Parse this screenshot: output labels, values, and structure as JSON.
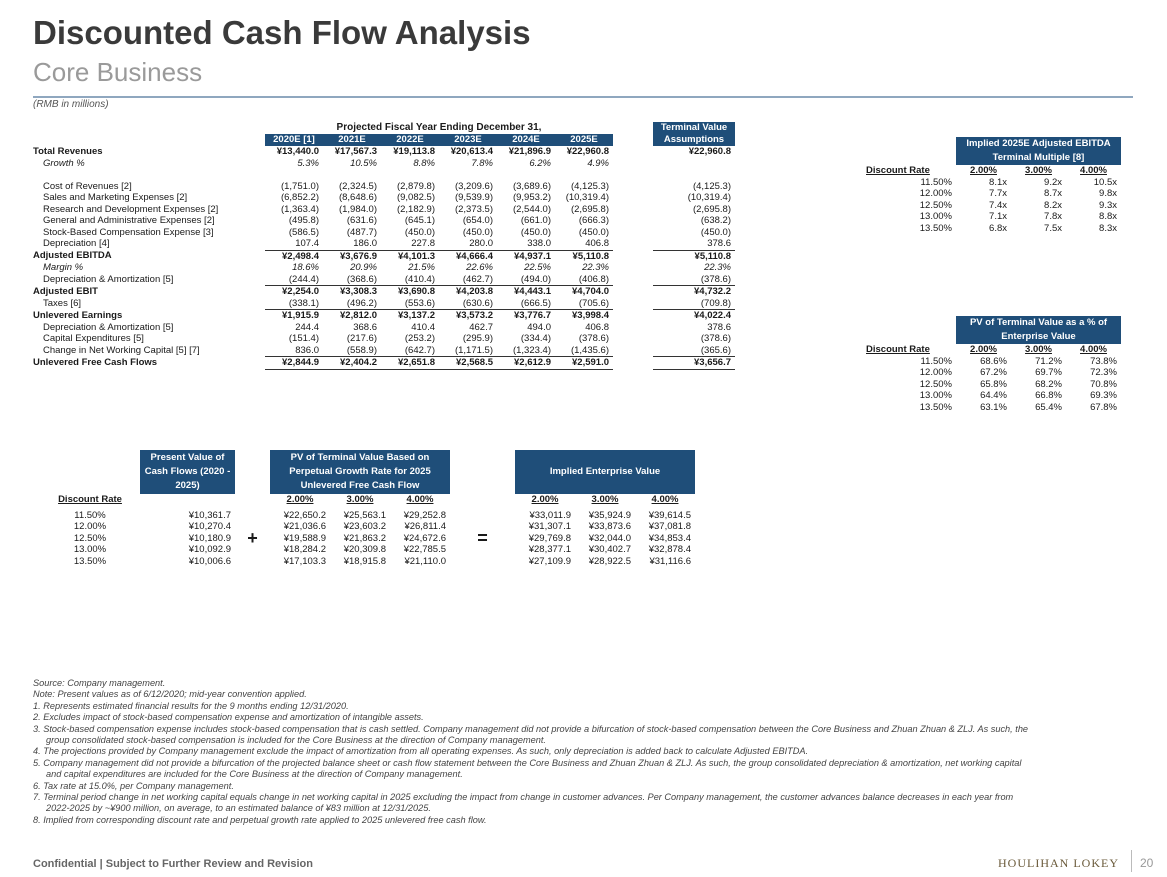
{
  "title": "Discounted Cash Flow Analysis",
  "subtitle": "Core Business",
  "units": "(RMB in millions)",
  "projection": {
    "header": "Projected Fiscal Year Ending December 31,",
    "years": [
      "2020E [1]",
      "2021E",
      "2022E",
      "2023E",
      "2024E",
      "2025E"
    ],
    "tv_header": "Terminal Value Assumptions",
    "rows": [
      {
        "label": "Total Revenues",
        "style": "bold",
        "values": [
          "¥13,440.0",
          "¥17,567.3",
          "¥19,113.8",
          "¥20,613.4",
          "¥21,896.9",
          "¥22,960.8"
        ],
        "tv": "¥22,960.8"
      },
      {
        "label": "Growth %",
        "style": "italic-indent",
        "values": [
          "5.3%",
          "10.5%",
          "8.8%",
          "7.8%",
          "6.2%",
          "4.9%"
        ],
        "tv": ""
      },
      {
        "label": "",
        "style": "spacer",
        "values": [
          "",
          "",
          "",
          "",
          "",
          ""
        ],
        "tv": ""
      },
      {
        "label": "Cost of Revenues [2]",
        "style": "indent",
        "values": [
          "(1,751.0)",
          "(2,324.5)",
          "(2,879.8)",
          "(3,209.6)",
          "(3,689.6)",
          "(4,125.3)"
        ],
        "tv": "(4,125.3)"
      },
      {
        "label": "Sales and Marketing Expenses [2]",
        "style": "indent",
        "values": [
          "(6,852.2)",
          "(8,648.6)",
          "(9,082.5)",
          "(9,539.9)",
          "(9,953.2)",
          "(10,319.4)"
        ],
        "tv": "(10,319.4)"
      },
      {
        "label": "Research and Development Expenses [2]",
        "style": "indent",
        "values": [
          "(1,363.4)",
          "(1,984.0)",
          "(2,182.9)",
          "(2,373.5)",
          "(2,544.0)",
          "(2,695.8)"
        ],
        "tv": "(2,695.8)"
      },
      {
        "label": "General and Administrative Expenses [2]",
        "style": "indent",
        "values": [
          "(495.8)",
          "(631.6)",
          "(645.1)",
          "(654.0)",
          "(661.0)",
          "(666.3)"
        ],
        "tv": "(638.2)"
      },
      {
        "label": "Stock-Based Compensation Expense [3]",
        "style": "indent",
        "values": [
          "(586.5)",
          "(487.7)",
          "(450.0)",
          "(450.0)",
          "(450.0)",
          "(450.0)"
        ],
        "tv": "(450.0)"
      },
      {
        "label": "Depreciation [4]",
        "style": "indent",
        "values": [
          "107.4",
          "186.0",
          "227.8",
          "280.0",
          "338.0",
          "406.8"
        ],
        "tv": "378.6"
      },
      {
        "label": "Adjusted EBITDA",
        "style": "bold-top",
        "values": [
          "¥2,498.4",
          "¥3,676.9",
          "¥4,101.3",
          "¥4,666.4",
          "¥4,937.1",
          "¥5,110.8"
        ],
        "tv": "¥5,110.8"
      },
      {
        "label": "Margin %",
        "style": "italic-indent",
        "values": [
          "18.6%",
          "20.9%",
          "21.5%",
          "22.6%",
          "22.5%",
          "22.3%"
        ],
        "tv": "22.3%"
      },
      {
        "label": "Depreciation & Amortization [5]",
        "style": "indent",
        "values": [
          "(244.4)",
          "(368.6)",
          "(410.4)",
          "(462.7)",
          "(494.0)",
          "(406.8)"
        ],
        "tv": "(378.6)"
      },
      {
        "label": "Adjusted EBIT",
        "style": "bold-top",
        "values": [
          "¥2,254.0",
          "¥3,308.3",
          "¥3,690.8",
          "¥4,203.8",
          "¥4,443.1",
          "¥4,704.0"
        ],
        "tv": "¥4,732.2"
      },
      {
        "label": "Taxes [6]",
        "style": "indent",
        "values": [
          "(338.1)",
          "(496.2)",
          "(553.6)",
          "(630.6)",
          "(666.5)",
          "(705.6)"
        ],
        "tv": "(709.8)"
      },
      {
        "label": "Unlevered Earnings",
        "style": "bold-top",
        "values": [
          "¥1,915.9",
          "¥2,812.0",
          "¥3,137.2",
          "¥3,573.2",
          "¥3,776.7",
          "¥3,998.4"
        ],
        "tv": "¥4,022.4"
      },
      {
        "label": "Depreciation & Amortization [5]",
        "style": "indent",
        "values": [
          "244.4",
          "368.6",
          "410.4",
          "462.7",
          "494.0",
          "406.8"
        ],
        "tv": "378.6"
      },
      {
        "label": "Capital Expenditures [5]",
        "style": "indent",
        "values": [
          "(151.4)",
          "(217.6)",
          "(253.2)",
          "(295.9)",
          "(334.4)",
          "(378.6)"
        ],
        "tv": "(378.6)"
      },
      {
        "label": "Change in Net Working Capital [5] [7]",
        "style": "indent",
        "values": [
          "836.0",
          "(558.9)",
          "(642.7)",
          "(1,171.5)",
          "(1,323.4)",
          "(1,435.6)"
        ],
        "tv": "(365.6)"
      },
      {
        "label": "Unlevered Free Cash Flows",
        "style": "bold-top",
        "values": [
          "¥2,844.9",
          "¥2,404.2",
          "¥2,651.8",
          "¥2,568.5",
          "¥2,612.9",
          "¥2,591.0"
        ],
        "tv": "¥3,656.7"
      }
    ]
  },
  "multiple_table": {
    "header": "Implied 2025E Adjusted EBITDA Terminal Multiple [8]",
    "rate_label": "Discount Rate",
    "cols": [
      "2.00%",
      "3.00%",
      "4.00%"
    ],
    "rows": [
      {
        "rate": "11.50%",
        "values": [
          "8.1x",
          "9.2x",
          "10.5x"
        ]
      },
      {
        "rate": "12.00%",
        "values": [
          "7.7x",
          "8.7x",
          "9.8x"
        ]
      },
      {
        "rate": "12.50%",
        "values": [
          "7.4x",
          "8.2x",
          "9.3x"
        ]
      },
      {
        "rate": "13.00%",
        "values": [
          "7.1x",
          "7.8x",
          "8.8x"
        ]
      },
      {
        "rate": "13.50%",
        "values": [
          "6.8x",
          "7.5x",
          "8.3x"
        ]
      }
    ]
  },
  "pv_tv_table": {
    "header": "PV of Terminal Value as a % of Enterprise Value",
    "rate_label": "Discount Rate",
    "cols": [
      "2.00%",
      "3.00%",
      "4.00%"
    ],
    "rows": [
      {
        "rate": "11.50%",
        "values": [
          "68.6%",
          "71.2%",
          "73.8%"
        ]
      },
      {
        "rate": "12.00%",
        "values": [
          "67.2%",
          "69.7%",
          "72.3%"
        ]
      },
      {
        "rate": "12.50%",
        "values": [
          "65.8%",
          "68.2%",
          "70.8%"
        ]
      },
      {
        "rate": "13.00%",
        "values": [
          "64.4%",
          "66.8%",
          "69.3%"
        ]
      },
      {
        "rate": "13.50%",
        "values": [
          "63.1%",
          "65.4%",
          "67.8%"
        ]
      }
    ]
  },
  "ev_section": {
    "rate_label": "Discount Rate",
    "pv_cf_header": "Present Value of Cash Flows (2020 - 2025)",
    "pv_tv_header": "PV of Terminal Value Based on Perpetual Growth Rate for 2025 Unlevered Free Cash Flow",
    "ev_header": "Implied Enterprise Value",
    "plus": "+",
    "equals": "=",
    "cols": [
      "2.00%",
      "3.00%",
      "4.00%"
    ],
    "rows": [
      {
        "rate": "11.50%",
        "pv_cf": "¥10,361.7",
        "pv_tv": [
          "¥22,650.2",
          "¥25,563.1",
          "¥29,252.8"
        ],
        "ev": [
          "¥33,011.9",
          "¥35,924.9",
          "¥39,614.5"
        ]
      },
      {
        "rate": "12.00%",
        "pv_cf": "¥10,270.4",
        "pv_tv": [
          "¥21,036.6",
          "¥23,603.2",
          "¥26,811.4"
        ],
        "ev": [
          "¥31,307.1",
          "¥33,873.6",
          "¥37,081.8"
        ]
      },
      {
        "rate": "12.50%",
        "pv_cf": "¥10,180.9",
        "pv_tv": [
          "¥19,588.9",
          "¥21,863.2",
          "¥24,672.6"
        ],
        "ev": [
          "¥29,769.8",
          "¥32,044.0",
          "¥34,853.4"
        ]
      },
      {
        "rate": "13.00%",
        "pv_cf": "¥10,092.9",
        "pv_tv": [
          "¥18,284.2",
          "¥20,309.8",
          "¥22,785.5"
        ],
        "ev": [
          "¥28,377.1",
          "¥30,402.7",
          "¥32,878.4"
        ]
      },
      {
        "rate": "13.50%",
        "pv_cf": "¥10,006.6",
        "pv_tv": [
          "¥17,103.3",
          "¥18,915.8",
          "¥21,110.0"
        ],
        "ev": [
          "¥27,109.9",
          "¥28,922.5",
          "¥31,116.6"
        ]
      }
    ]
  },
  "footnotes": {
    "source": "Source: Company management.",
    "note": "Note: Present values as of 6/12/2020; mid-year convention applied.",
    "items": [
      "1.  Represents estimated financial results for the 9 months ending 12/31/2020.",
      "2.  Excludes impact of stock-based compensation expense and amortization of intangible assets.",
      "3.  Stock-based compensation expense includes stock-based compensation that is cash settled. Company management did not provide a bifurcation of stock-based compensation between the Core Business and Zhuan Zhuan & ZLJ. As such, the group consolidated stock-based compensation is included for the Core Business at the direction of Company management.",
      "4.  The projections provided by Company management exclude the impact of amortization from all operating expenses. As such, only depreciation is added back to calculate Adjusted EBITDA.",
      "5.  Company management did not provide a bifurcation of the projected balance sheet or cash flow statement between the Core Business and Zhuan Zhuan & ZLJ. As such, the group consolidated depreciation & amortization, net working capital and capital expenditures are included for the Core Business at the direction of Company management.",
      "6.  Tax rate at 15.0%, per Company management.",
      "7.  Terminal period change in net working capital equals change in net working capital in 2025 excluding the impact from change in customer advances. Per Company management, the customer advances balance decreases in each year from 2022-2025 by ~¥900 million, on average, to an estimated balance of ¥83 million at 12/31/2025.",
      "8.  Implied from corresponding discount rate and perpetual growth rate applied to 2025 unlevered free cash flow."
    ]
  },
  "footer": {
    "confidential": "Confidential | Subject to Further Review and Revision",
    "logo": "HOULIHAN LOKEY",
    "page": "20"
  }
}
